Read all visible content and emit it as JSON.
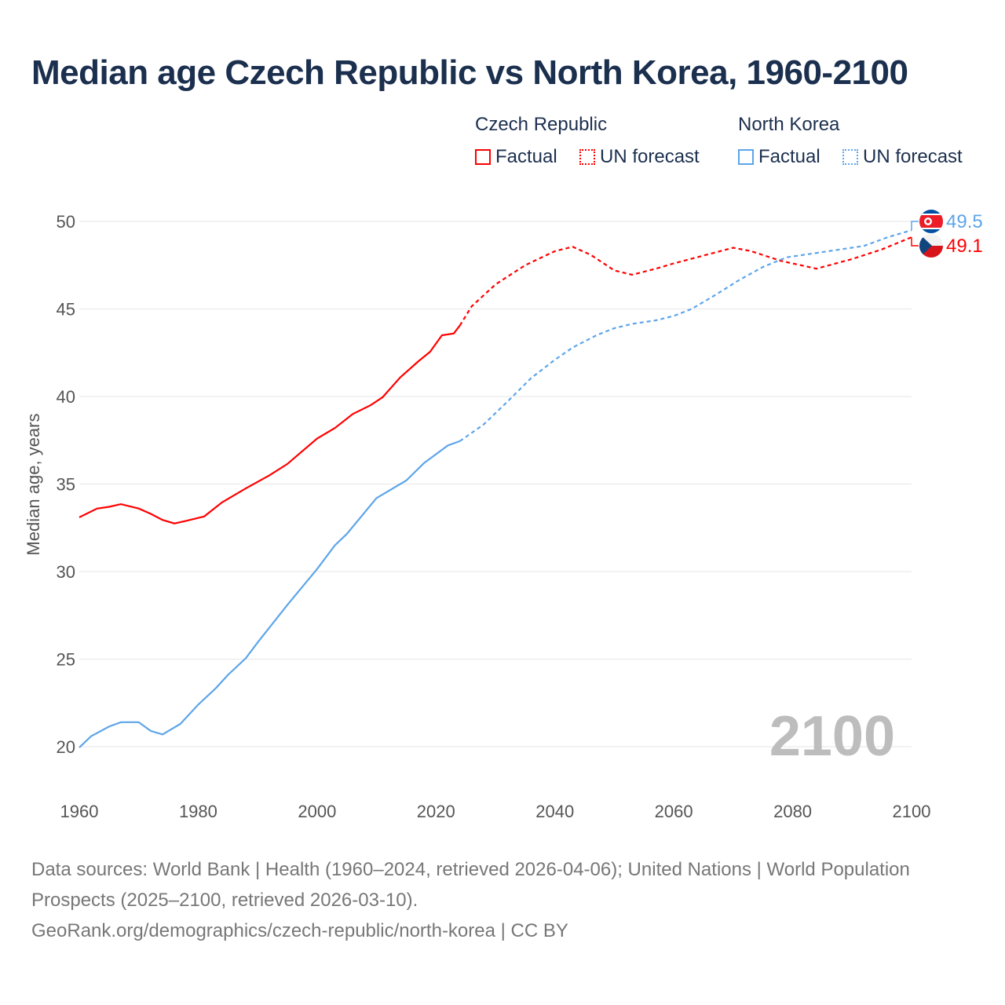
{
  "chart_data": {
    "type": "line",
    "title": "Median age Czech Republic vs North Korea, 1960-2100",
    "ylabel": "Median age, years",
    "xlabel": "",
    "xlim": [
      1960,
      2100
    ],
    "ylim": [
      20,
      50
    ],
    "x_ticks": [
      "1960",
      "1980",
      "2000",
      "2020",
      "2040",
      "2060",
      "2080",
      "2100"
    ],
    "y_ticks": [
      "20",
      "25",
      "30",
      "35",
      "40",
      "45",
      "50"
    ],
    "grid": true,
    "year_label": "2100",
    "legend": {
      "groups": [
        {
          "name": "Czech Republic",
          "items": [
            "Factual",
            "UN forecast"
          ]
        },
        {
          "name": "North Korea",
          "items": [
            "Factual",
            "UN forecast"
          ]
        }
      ],
      "placement": "top-right"
    },
    "series": [
      {
        "name": "Czech Republic",
        "color": "#ff0000",
        "end_label": "49.1",
        "factual": [
          [
            1960,
            33.1
          ],
          [
            1963,
            33.6
          ],
          [
            1965,
            33.7
          ],
          [
            1967,
            33.85
          ],
          [
            1970,
            33.6
          ],
          [
            1972,
            33.3
          ],
          [
            1974,
            32.95
          ],
          [
            1976,
            32.75
          ],
          [
            1978,
            32.9
          ],
          [
            1981,
            33.15
          ],
          [
            1984,
            33.95
          ],
          [
            1988,
            34.75
          ],
          [
            1992,
            35.5
          ],
          [
            1995,
            36.15
          ],
          [
            2000,
            37.6
          ],
          [
            2003,
            38.2
          ],
          [
            2006,
            39.0
          ],
          [
            2009,
            39.5
          ],
          [
            2011,
            39.95
          ],
          [
            2014,
            41.1
          ],
          [
            2017,
            42.0
          ],
          [
            2019,
            42.55
          ],
          [
            2021,
            43.5
          ],
          [
            2023,
            43.6
          ],
          [
            2024,
            44.05
          ]
        ],
        "forecast": [
          [
            2024,
            44.05
          ],
          [
            2026,
            45.15
          ],
          [
            2030,
            46.4
          ],
          [
            2035,
            47.5
          ],
          [
            2040,
            48.3
          ],
          [
            2043,
            48.55
          ],
          [
            2046,
            48.1
          ],
          [
            2050,
            47.2
          ],
          [
            2053,
            46.95
          ],
          [
            2057,
            47.3
          ],
          [
            2060,
            47.6
          ],
          [
            2065,
            48.05
          ],
          [
            2070,
            48.5
          ],
          [
            2073,
            48.3
          ],
          [
            2078,
            47.75
          ],
          [
            2084,
            47.3
          ],
          [
            2090,
            47.85
          ],
          [
            2095,
            48.4
          ],
          [
            2100,
            49.1
          ]
        ]
      },
      {
        "name": "North Korea",
        "color": "#5da5ea",
        "end_label": "49.5",
        "factual": [
          [
            1960,
            19.95
          ],
          [
            1962,
            20.6
          ],
          [
            1965,
            21.15
          ],
          [
            1967,
            21.4
          ],
          [
            1970,
            21.4
          ],
          [
            1972,
            20.9
          ],
          [
            1974,
            20.7
          ],
          [
            1977,
            21.3
          ],
          [
            1980,
            22.4
          ],
          [
            1983,
            23.35
          ],
          [
            1985,
            24.1
          ],
          [
            1988,
            25.05
          ],
          [
            1990,
            25.95
          ],
          [
            1995,
            28.1
          ],
          [
            2000,
            30.15
          ],
          [
            2003,
            31.5
          ],
          [
            2005,
            32.15
          ],
          [
            2010,
            34.2
          ],
          [
            2015,
            35.2
          ],
          [
            2018,
            36.2
          ],
          [
            2022,
            37.2
          ],
          [
            2024,
            37.45
          ]
        ],
        "forecast": [
          [
            2024,
            37.45
          ],
          [
            2028,
            38.4
          ],
          [
            2032,
            39.7
          ],
          [
            2036,
            41.05
          ],
          [
            2040,
            42.1
          ],
          [
            2043,
            42.8
          ],
          [
            2047,
            43.5
          ],
          [
            2050,
            43.9
          ],
          [
            2053,
            44.15
          ],
          [
            2057,
            44.35
          ],
          [
            2060,
            44.6
          ],
          [
            2063,
            45.0
          ],
          [
            2067,
            45.8
          ],
          [
            2071,
            46.65
          ],
          [
            2075,
            47.4
          ],
          [
            2079,
            47.95
          ],
          [
            2083,
            48.15
          ],
          [
            2088,
            48.4
          ],
          [
            2092,
            48.6
          ],
          [
            2096,
            49.1
          ],
          [
            2100,
            49.5
          ]
        ]
      }
    ]
  },
  "footer": {
    "line1": "Data sources: World Bank | Health (1960–2024, retrieved 2026-04-06); United Nations | World Population Prospects (2025–2100, retrieved 2026-03-10).",
    "line2": "GeoRank.org/demographics/czech-republic/north-korea | CC BY"
  }
}
